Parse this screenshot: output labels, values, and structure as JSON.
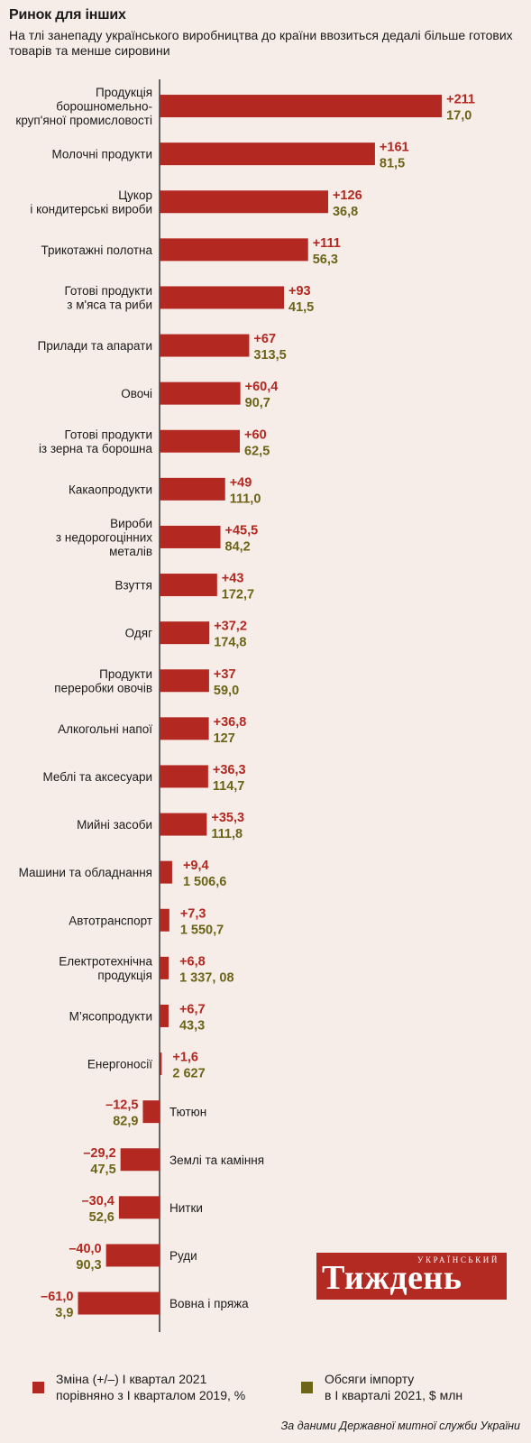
{
  "title": "Ринок для інших",
  "subtitle": "На тлі занепаду українського виробництва до країни ввозиться дедалі більше готових товарів та менше сировини",
  "chart_data": {
    "type": "bar",
    "orientation": "horizontal",
    "categories": [
      "Продукція борошномельно-круп'яної промисловості",
      "Молочні продукти",
      "Цукор і кондитерські вироби",
      "Трикотажні полотна",
      "Готові продукти з м'яса та риби",
      "Прилади та апарати",
      "Овочі",
      "Готові продукти із зерна та борошна",
      "Какаопродукти",
      "Вироби з недорогоцінних металів",
      "Взуття",
      "Одяг",
      "Продукти переробки овочів",
      "Алкогольні напої",
      "Меблі та аксесуари",
      "Мийні засоби",
      "Машини та обладнання",
      "Автотранспорт",
      "Електротехнічна продукція",
      "М’ясопродукти",
      "Енергоносії",
      "Тютюн",
      "Землі та каміння",
      "Нитки",
      "Руди",
      "Вовна і пряжа"
    ],
    "label_lines": [
      [
        "Продукція",
        "борошномельно-",
        "круп'яної промисловості"
      ],
      [
        "Молочні продукти"
      ],
      [
        "Цукор",
        "і кондитерські вироби"
      ],
      [
        "Трикотажні полотна"
      ],
      [
        "Готові продукти",
        "з м'яса та риби"
      ],
      [
        "Прилади та апарати"
      ],
      [
        "Овочі"
      ],
      [
        "Готові продукти",
        "із зерна та борошна"
      ],
      [
        "Какаопродукти"
      ],
      [
        "Вироби",
        "з недорогоцінних",
        "металів"
      ],
      [
        "Взуття"
      ],
      [
        "Одяг"
      ],
      [
        "Продукти",
        "переробки овочів"
      ],
      [
        "Алкогольні напої"
      ],
      [
        "Меблі та аксесуари"
      ],
      [
        "Мийні засоби"
      ],
      [
        "Машини та обладнання"
      ],
      [
        "Автотранспорт"
      ],
      [
        "Електротехнічна",
        "продукція"
      ],
      [
        "М’ясопродукти"
      ],
      [
        "Енергоносії"
      ],
      [
        "Тютюн"
      ],
      [
        "Землі та каміння"
      ],
      [
        "Нитки"
      ],
      [
        "Руди"
      ],
      [
        "Вовна і пряжа"
      ]
    ],
    "series": [
      {
        "name": "Зміна (+/–) І квартал 2021 порівняно з І кварталом 2019, %",
        "color": "#b32820",
        "values": [
          211,
          161,
          126,
          111,
          93,
          67,
          60.4,
          60,
          49,
          45.5,
          43,
          37.2,
          37,
          36.8,
          36.3,
          35.3,
          9.4,
          7.3,
          6.8,
          6.7,
          1.6,
          -12.5,
          -29.2,
          -30.4,
          -40.0,
          -61.0
        ],
        "value_labels": [
          "+211",
          "+161",
          "+126",
          "+111",
          "+93",
          "+67",
          "+60,4",
          "+60",
          "+49",
          "+45,5",
          "+43",
          "+37,2",
          "+37",
          "+36,8",
          "+36,3",
          "+35,3",
          "+9,4",
          "+7,3",
          "+6,8",
          "+6,7",
          "+1,6",
          "–12,5",
          "–29,2",
          "–30,4",
          "–40,0",
          "–61,0"
        ]
      },
      {
        "name": "Обсяги імпорту в І кварталі 2021, $ млн",
        "color": "#6c6417",
        "values": [
          17.0,
          81.5,
          36.8,
          56.3,
          41.5,
          313.5,
          90.7,
          62.5,
          111.0,
          84.2,
          172.7,
          174.8,
          59.0,
          127,
          114.7,
          111.8,
          1506.6,
          1550.7,
          1337.08,
          43.3,
          2627,
          82.9,
          47.5,
          52.6,
          90.3,
          3.9
        ],
        "value_labels": [
          "17,0",
          "81,5",
          "36,8",
          "56,3",
          "41,5",
          "313,5",
          "90,7",
          "62,5",
          "111,0",
          "84,2",
          "172,7",
          "174,8",
          "59,0",
          "127",
          "114,7",
          "111,8",
          "1 506,6",
          "1 550,7",
          "1 337, 08",
          "43,3",
          "2 627",
          "82,9",
          "47,5",
          "52,6",
          "90,3",
          "3,9"
        ]
      }
    ],
    "legend_placement": "bottom",
    "grid": false
  },
  "legend": [
    {
      "label_lines": [
        "Зміна (+/–) І квартал 2021",
        "порівняно з І кварталом 2019, %"
      ],
      "color": "#b32820"
    },
    {
      "label_lines": [
        "Обсяги імпорту",
        "в І кварталі 2021, $ млн"
      ],
      "color": "#6c6417"
    }
  ],
  "source": "За даними Державної митної служби України",
  "logo": {
    "small_text": "УКРАЇНСЬКИЙ",
    "big_text": "Тиждень"
  }
}
